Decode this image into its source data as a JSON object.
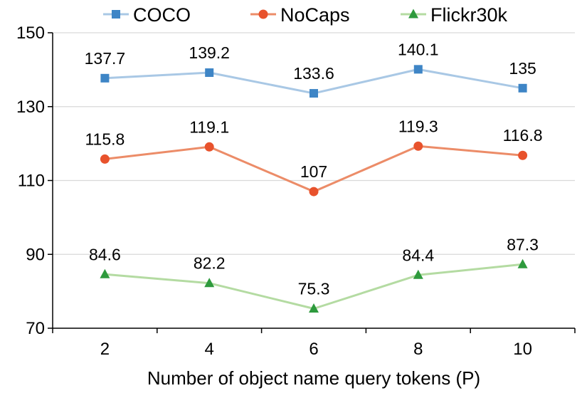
{
  "chart_data": {
    "type": "line",
    "title": "",
    "xlabel": "Number of object name query tokens (P)",
    "ylabel": "",
    "x": [
      2,
      4,
      6,
      8,
      10
    ],
    "x_tick_labels": [
      "2",
      "4",
      "6",
      "8",
      "10"
    ],
    "ylim": [
      70,
      150
    ],
    "y_ticks": [
      70,
      90,
      110,
      130,
      150
    ],
    "y_tick_labels": [
      "70",
      "90",
      "110",
      "130",
      "150"
    ],
    "grid": "horizontal",
    "legend_position": "top",
    "series": [
      {
        "name": "COCO",
        "values": [
          137.7,
          139.2,
          133.6,
          140.1,
          135
        ],
        "labels": [
          "137.7",
          "139.2",
          "133.6",
          "140.1",
          "135"
        ],
        "marker": "square",
        "line_color": "#a9c8e5",
        "marker_color": "#3e85c6"
      },
      {
        "name": "NoCaps",
        "values": [
          115.8,
          119.1,
          107,
          119.3,
          116.8
        ],
        "labels": [
          "115.8",
          "119.1",
          "107",
          "119.3",
          "116.8"
        ],
        "marker": "circle",
        "line_color": "#ec8c68",
        "marker_color": "#e8522c"
      },
      {
        "name": "Flickr30k",
        "values": [
          84.6,
          82.2,
          75.3,
          84.4,
          87.3
        ],
        "labels": [
          "84.6",
          "82.2",
          "75.3",
          "84.4",
          "87.3"
        ],
        "marker": "triangle",
        "line_color": "#b4dba2",
        "marker_color": "#2e9a3d"
      }
    ]
  }
}
